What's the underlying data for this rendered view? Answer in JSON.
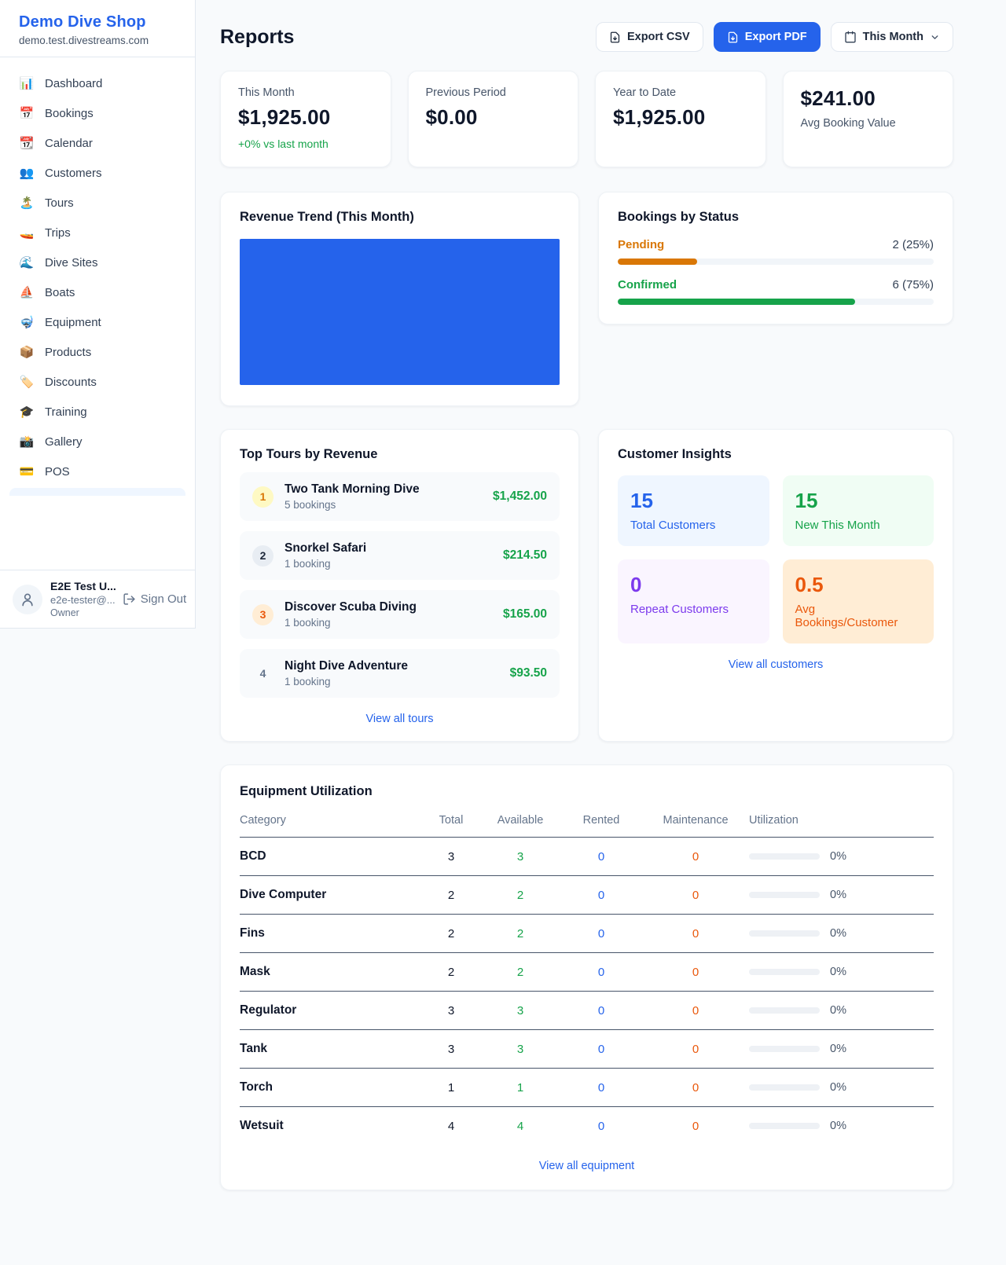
{
  "app": {
    "name": "Demo Dive Shop",
    "domain": "demo.test.divestreams.com"
  },
  "sidebar": {
    "items": [
      {
        "icon": "📊",
        "label": "Dashboard"
      },
      {
        "icon": "📅",
        "label": "Bookings"
      },
      {
        "icon": "📆",
        "label": "Calendar"
      },
      {
        "icon": "👥",
        "label": "Customers"
      },
      {
        "icon": "🏝️",
        "label": "Tours"
      },
      {
        "icon": "🚤",
        "label": "Trips"
      },
      {
        "icon": "🌊",
        "label": "Dive Sites"
      },
      {
        "icon": "⛵",
        "label": "Boats"
      },
      {
        "icon": "🤿",
        "label": "Equipment"
      },
      {
        "icon": "📦",
        "label": "Products"
      },
      {
        "icon": "🏷️",
        "label": "Discounts"
      },
      {
        "icon": "🎓",
        "label": "Training"
      },
      {
        "icon": "📸",
        "label": "Gallery"
      },
      {
        "icon": "💳",
        "label": "POS"
      }
    ],
    "user": {
      "name": "E2E Test U...",
      "email": "e2e-tester@...",
      "role": "Owner",
      "sign_out_label": "Sign Out"
    }
  },
  "header": {
    "title": "Reports",
    "export_csv_label": "Export CSV",
    "export_pdf_label": "Export PDF",
    "period_label": "This Month"
  },
  "stats": [
    {
      "label": "This Month",
      "value": "$1,925.00",
      "delta": "+0% vs last month"
    },
    {
      "label": "Previous Period",
      "value": "$0.00"
    },
    {
      "label": "Year to Date",
      "value": "$1,925.00"
    },
    {
      "label": "Avg Booking Value",
      "value": "$241.00"
    }
  ],
  "revenue_trend": {
    "title": "Revenue Trend (This Month)"
  },
  "bookings_by_status": {
    "title": "Bookings by Status",
    "rows": [
      {
        "label": "Pending",
        "value_text": "2 (25%)",
        "percent": 25,
        "color": "#d97706"
      },
      {
        "label": "Confirmed",
        "value_text": "6 (75%)",
        "percent": 75,
        "color": "#16a34a"
      }
    ]
  },
  "top_tours": {
    "title": "Top Tours by Revenue",
    "view_all_label": "View all tours",
    "items": [
      {
        "rank": "1",
        "name": "Two Tank Morning Dive",
        "bookings": "5 bookings",
        "revenue": "$1,452.00"
      },
      {
        "rank": "2",
        "name": "Snorkel Safari",
        "bookings": "1 booking",
        "revenue": "$214.50"
      },
      {
        "rank": "3",
        "name": "Discover Scuba Diving",
        "bookings": "1 booking",
        "revenue": "$165.00"
      },
      {
        "rank": "4",
        "name": "Night Dive Adventure",
        "bookings": "1 booking",
        "revenue": "$93.50"
      }
    ]
  },
  "customer_insights": {
    "title": "Customer Insights",
    "view_all_label": "View all customers",
    "tiles": [
      {
        "value": "15",
        "label": "Total Customers",
        "color": "#2563eb"
      },
      {
        "value": "15",
        "label": "New This Month",
        "color": "#16a34a"
      },
      {
        "value": "0",
        "label": "Repeat Customers",
        "color": "#7c3aed"
      },
      {
        "value": "0.5",
        "label": "Avg Bookings/Customer",
        "color": "#ea580c"
      }
    ]
  },
  "equipment": {
    "title": "Equipment Utilization",
    "view_all_label": "View all equipment",
    "columns": [
      "Category",
      "Total",
      "Available",
      "Rented",
      "Maintenance",
      "Utilization"
    ],
    "rows": [
      {
        "category": "BCD",
        "total": "3",
        "available": "3",
        "rented": "0",
        "maintenance": "0",
        "utilization_text": "0%",
        "utilization_percent": 0
      },
      {
        "category": "Dive Computer",
        "total": "2",
        "available": "2",
        "rented": "0",
        "maintenance": "0",
        "utilization_text": "0%",
        "utilization_percent": 0
      },
      {
        "category": "Fins",
        "total": "2",
        "available": "2",
        "rented": "0",
        "maintenance": "0",
        "utilization_text": "0%",
        "utilization_percent": 0
      },
      {
        "category": "Mask",
        "total": "2",
        "available": "2",
        "rented": "0",
        "maintenance": "0",
        "utilization_text": "0%",
        "utilization_percent": 0
      },
      {
        "category": "Regulator",
        "total": "3",
        "available": "3",
        "rented": "0",
        "maintenance": "0",
        "utilization_text": "0%",
        "utilization_percent": 0
      },
      {
        "category": "Tank",
        "total": "3",
        "available": "3",
        "rented": "0",
        "maintenance": "0",
        "utilization_text": "0%",
        "utilization_percent": 0
      },
      {
        "category": "Torch",
        "total": "1",
        "available": "1",
        "rented": "0",
        "maintenance": "0",
        "utilization_text": "0%",
        "utilization_percent": 0
      },
      {
        "category": "Wetsuit",
        "total": "4",
        "available": "4",
        "rented": "0",
        "maintenance": "0",
        "utilization_text": "0%",
        "utilization_percent": 0
      }
    ]
  },
  "colors": {
    "accent_blue": "#2563eb",
    "green": "#16a34a",
    "amber": "#d97706",
    "orange": "#ea580c",
    "purple": "#7c3aed",
    "page_bg": "#f8fafc"
  },
  "chart_data": [
    {
      "type": "bar",
      "title": "Revenue Trend (This Month)",
      "categories": [
        "This Month"
      ],
      "values": [
        1925
      ],
      "bar_color": "#2563eb",
      "note": "single bar fills entire plot area; no axes, gridlines or labels visible"
    },
    {
      "type": "bar",
      "title": "Bookings by Status",
      "categories": [
        "Pending",
        "Confirmed"
      ],
      "values": [
        2,
        6
      ],
      "percent_labels": [
        "2 (25%)",
        "6 (75%)"
      ],
      "colors": [
        "#d97706",
        "#16a34a"
      ],
      "note": "horizontal progress bars at 25% and 75%"
    }
  ]
}
